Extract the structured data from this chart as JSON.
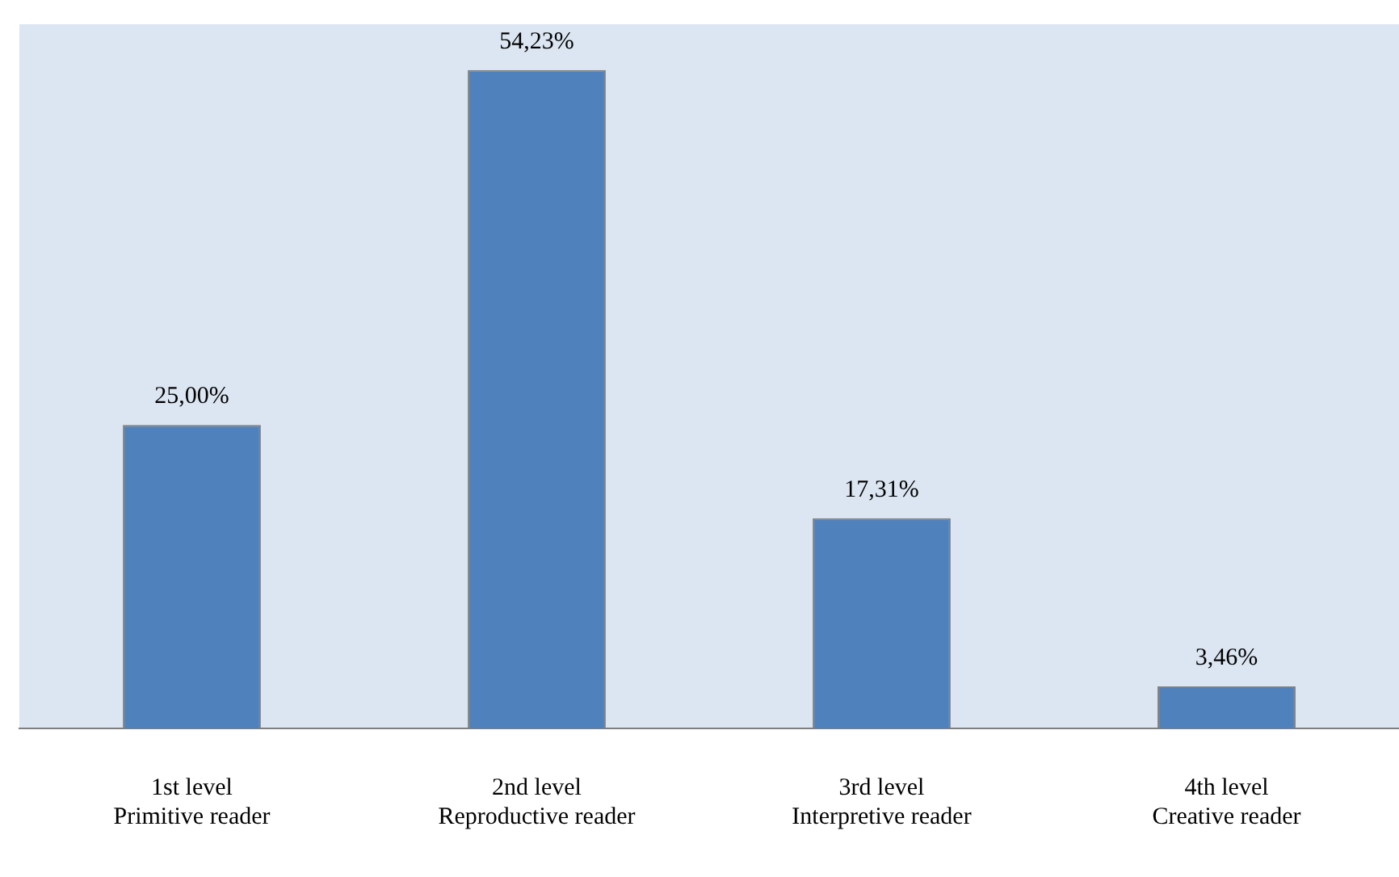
{
  "chart_data": {
    "type": "bar",
    "categories": [
      "1st level\nPrimitive reader",
      "2nd level\nReproductive reader",
      "3rd level\nInterpretive reader",
      "4th level\nCreative reader"
    ],
    "values": [
      25.0,
      54.23,
      17.31,
      3.46
    ],
    "value_labels": [
      "25,00%",
      "54,23%",
      "17,31%",
      "3,46%"
    ],
    "color": "#4f81bd",
    "ylim": [
      0,
      58
    ],
    "tick_labels": "x",
    "grid": false,
    "legend": false
  }
}
